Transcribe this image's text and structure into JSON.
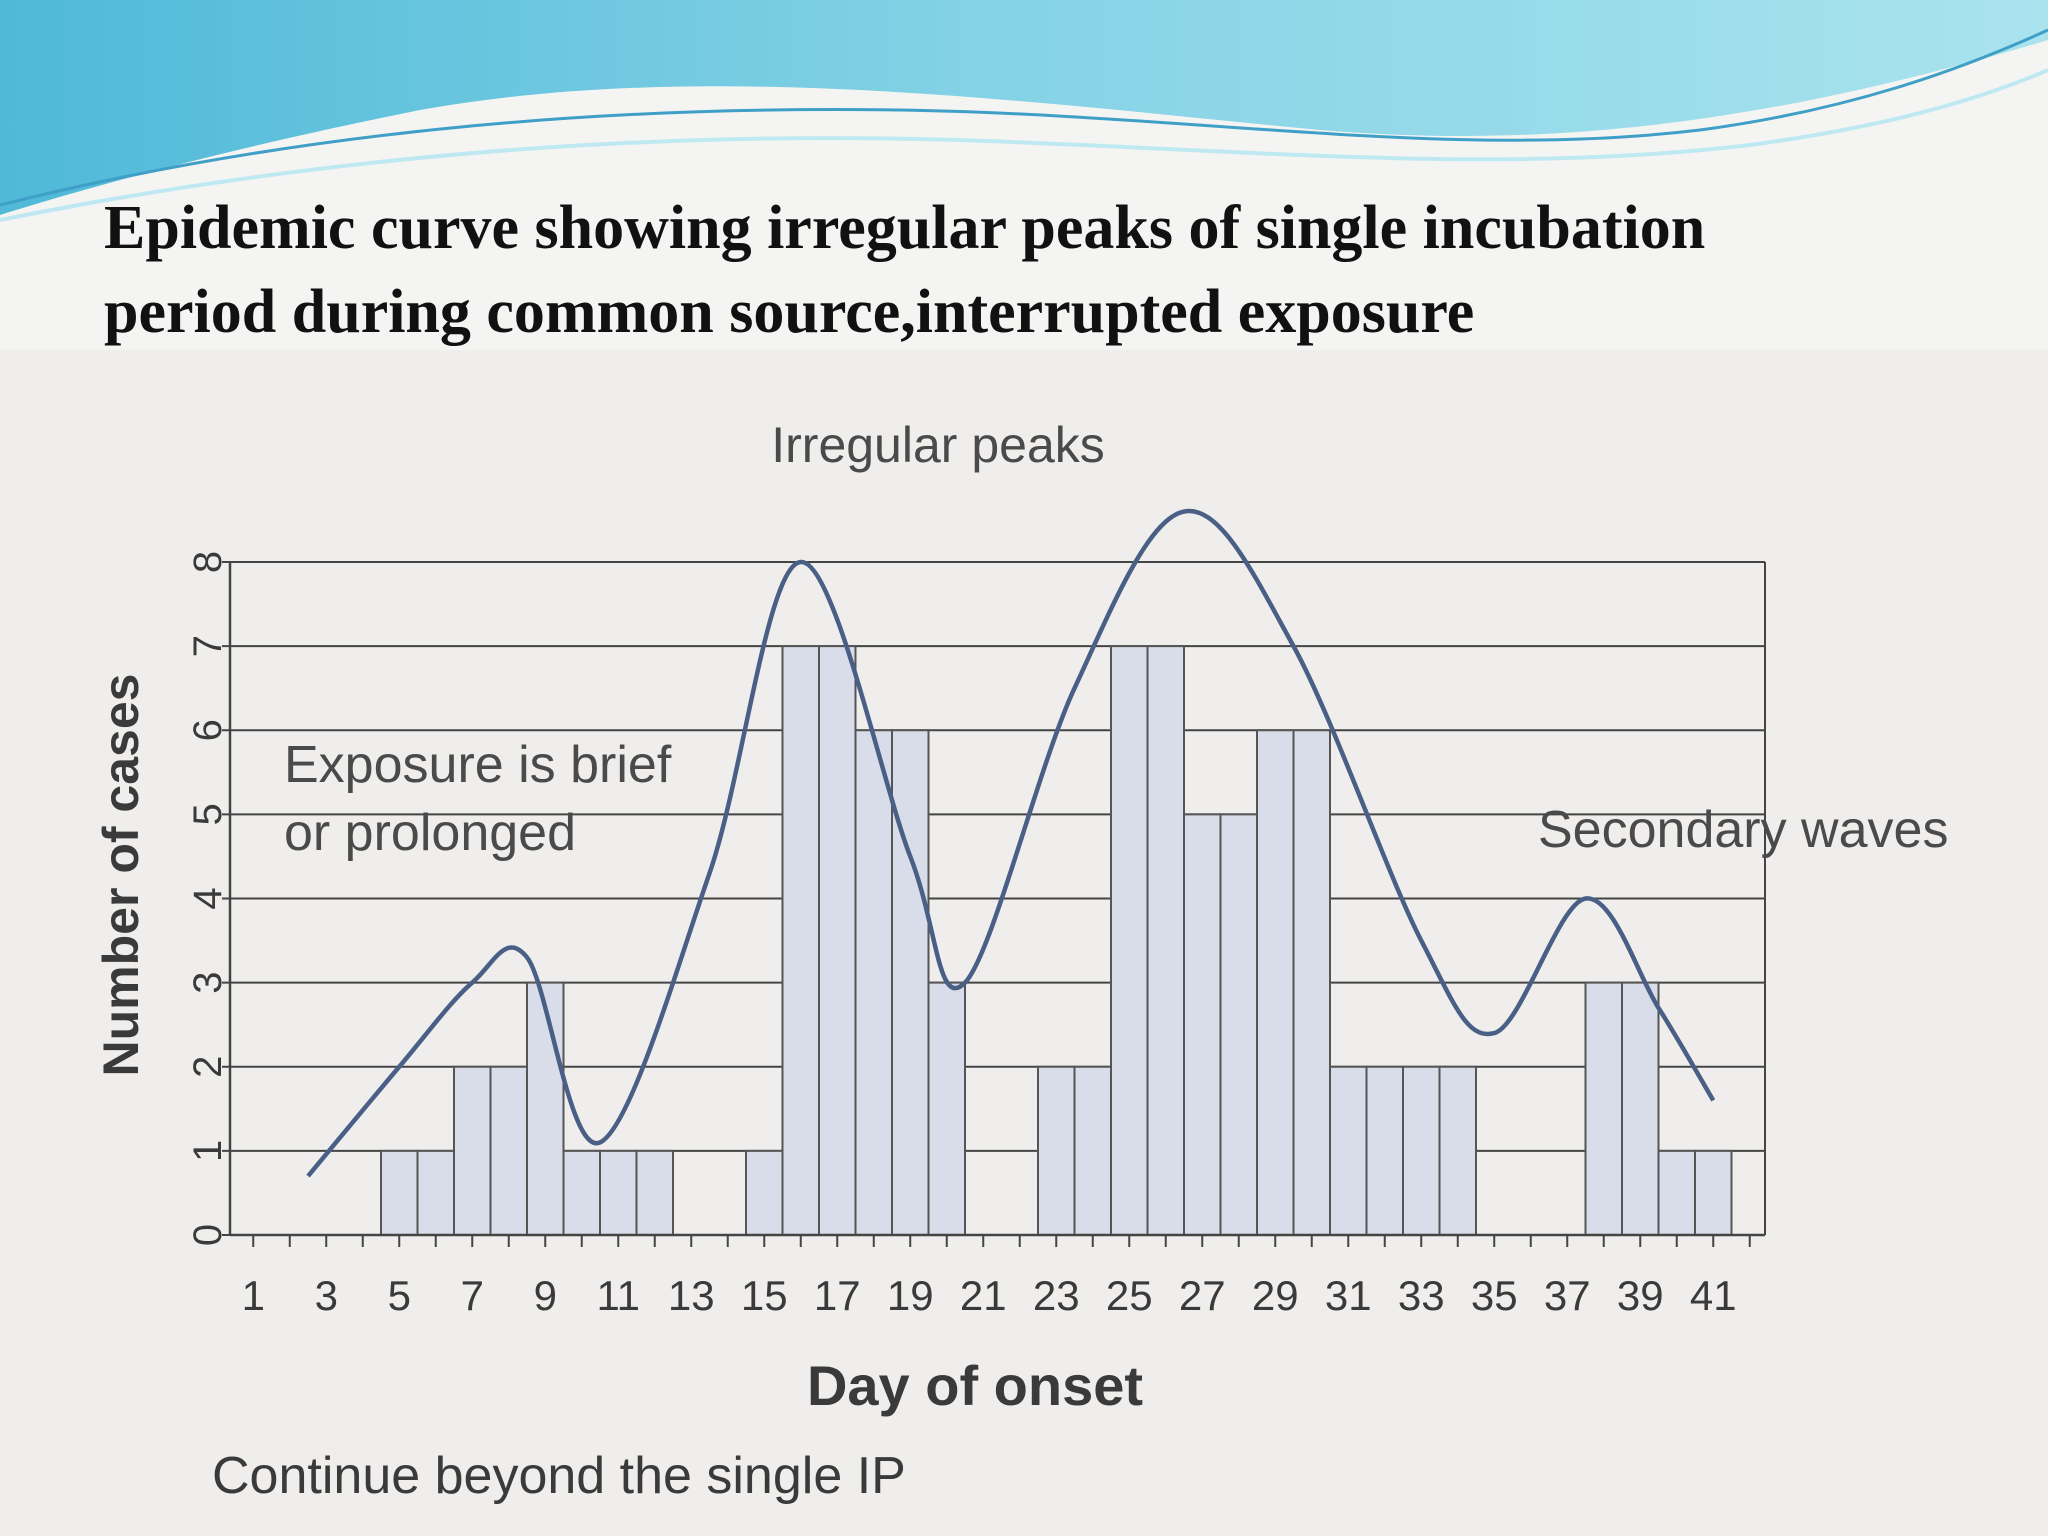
{
  "slide": {
    "title_line1": "Epidemic curve showing irregular peaks of single incubation",
    "title_line2": "period during common source,interrupted exposure"
  },
  "colors": {
    "bar_fill": "#d9dde9",
    "bar_stroke": "#555555",
    "curve": "#4a5f85",
    "grid": "#444444",
    "text": "#3a3a3a",
    "wave_light": "#8ed8e8",
    "wave_dark": "#3f9fc6"
  },
  "chart_data": {
    "type": "bar",
    "xlabel": "Day of onset",
    "ylabel": "Number of cases",
    "xlim": [
      1,
      42
    ],
    "ylim": [
      0,
      8
    ],
    "x_tick_labels": [
      "1",
      "3",
      "5",
      "7",
      "9",
      "11",
      "13",
      "15",
      "17",
      "19",
      "21",
      "23",
      "25",
      "27",
      "29",
      "31",
      "33",
      "35",
      "37",
      "39",
      "41"
    ],
    "y_tick_labels": [
      "0",
      "1",
      "2",
      "3",
      "4",
      "5",
      "6",
      "7",
      "8"
    ],
    "grid": true,
    "bars": [
      {
        "day": 5,
        "value": 1
      },
      {
        "day": 6,
        "value": 1
      },
      {
        "day": 7,
        "value": 2
      },
      {
        "day": 8,
        "value": 2
      },
      {
        "day": 9,
        "value": 3
      },
      {
        "day": 10,
        "value": 1
      },
      {
        "day": 11,
        "value": 1
      },
      {
        "day": 12,
        "value": 1
      },
      {
        "day": 15,
        "value": 1
      },
      {
        "day": 16,
        "value": 7
      },
      {
        "day": 17,
        "value": 7
      },
      {
        "day": 18,
        "value": 6
      },
      {
        "day": 19,
        "value": 6
      },
      {
        "day": 20,
        "value": 3
      },
      {
        "day": 23,
        "value": 2
      },
      {
        "day": 24,
        "value": 2
      },
      {
        "day": 25,
        "value": 7
      },
      {
        "day": 26,
        "value": 7
      },
      {
        "day": 27,
        "value": 5
      },
      {
        "day": 28,
        "value": 5
      },
      {
        "day": 29,
        "value": 6
      },
      {
        "day": 30,
        "value": 6
      },
      {
        "day": 31,
        "value": 2
      },
      {
        "day": 32,
        "value": 2
      },
      {
        "day": 33,
        "value": 2
      },
      {
        "day": 34,
        "value": 2
      },
      {
        "day": 38,
        "value": 3
      },
      {
        "day": 39,
        "value": 3
      },
      {
        "day": 40,
        "value": 1
      },
      {
        "day": 41,
        "value": 1
      }
    ],
    "trend_curve": [
      {
        "day": 3,
        "value": 0.7
      },
      {
        "day": 5.5,
        "value": 2.0
      },
      {
        "day": 7.5,
        "value": 3.0
      },
      {
        "day": 9,
        "value": 3.3
      },
      {
        "day": 11,
        "value": 1.1
      },
      {
        "day": 14,
        "value": 4.3
      },
      {
        "day": 16.5,
        "value": 8.0
      },
      {
        "day": 19.5,
        "value": 4.5
      },
      {
        "day": 21,
        "value": 3.0
      },
      {
        "day": 24,
        "value": 6.5
      },
      {
        "day": 27,
        "value": 8.6
      },
      {
        "day": 30,
        "value": 7.0
      },
      {
        "day": 33.5,
        "value": 3.5
      },
      {
        "day": 35.5,
        "value": 2.4
      },
      {
        "day": 38,
        "value": 4.0
      },
      {
        "day": 40,
        "value": 2.7
      },
      {
        "day": 41.5,
        "value": 1.6
      }
    ],
    "annotations": {
      "irregular_peaks": "Irregular peaks",
      "exposure_line1": "Exposure is brief",
      "exposure_line2": "or prolonged",
      "secondary_waves": "Secondary waves",
      "continue": "Continue beyond the single IP"
    }
  }
}
